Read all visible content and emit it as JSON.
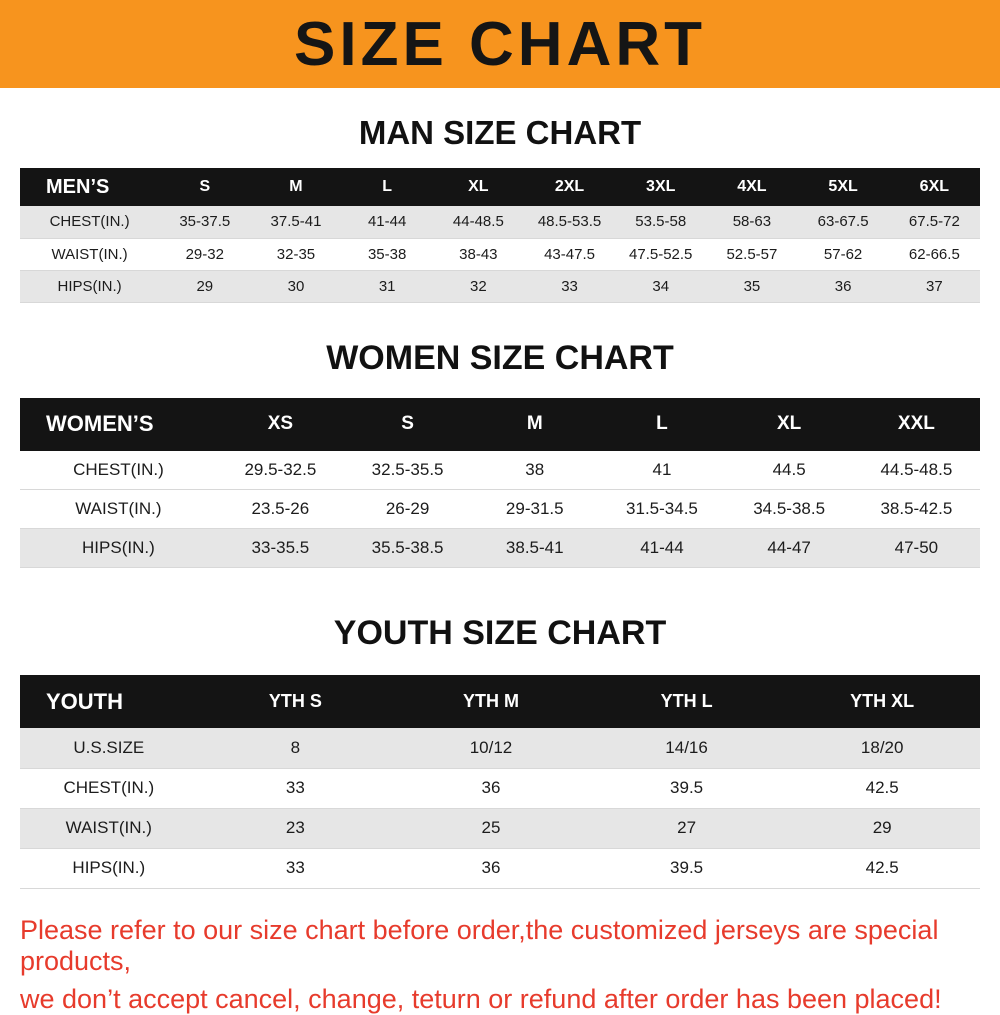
{
  "banner": {
    "title": "SIZE CHART",
    "bg_color": "#f7941e"
  },
  "chart_data": [
    {
      "type": "table",
      "title": "MAN SIZE CHART",
      "columns": [
        "MEN’S",
        "S",
        "M",
        "L",
        "XL",
        "2XL",
        "3XL",
        "4XL",
        "5XL",
        "6XL"
      ],
      "rows": [
        {
          "label": "CHEST(IN.)",
          "values": [
            "35-37.5",
            "37.5-41",
            "41-44",
            "44-48.5",
            "48.5-53.5",
            "53.5-58",
            "58-63",
            "63-67.5",
            "67.5-72"
          ]
        },
        {
          "label": "WAIST(IN.)",
          "values": [
            "29-32",
            "32-35",
            "35-38",
            "38-43",
            "43-47.5",
            "47.5-52.5",
            "52.5-57",
            "57-62",
            "62-66.5"
          ]
        },
        {
          "label": "HIPS(IN.)",
          "values": [
            "29",
            "30",
            "31",
            "32",
            "33",
            "34",
            "35",
            "36",
            "37"
          ]
        }
      ]
    },
    {
      "type": "table",
      "title": "WOMEN SIZE CHART",
      "columns": [
        "WOMEN’S",
        "XS",
        "S",
        "M",
        "L",
        "XL",
        "XXL"
      ],
      "rows": [
        {
          "label": "CHEST(IN.)",
          "values": [
            "29.5-32.5",
            "32.5-35.5",
            "38",
            "41",
            "44.5",
            "44.5-48.5"
          ]
        },
        {
          "label": "WAIST(IN.)",
          "values": [
            "23.5-26",
            "26-29",
            "29-31.5",
            "31.5-34.5",
            "34.5-38.5",
            "38.5-42.5"
          ]
        },
        {
          "label": "HIPS(IN.)",
          "values": [
            "33-35.5",
            "35.5-38.5",
            "38.5-41",
            "41-44",
            "44-47",
            "47-50"
          ]
        }
      ]
    },
    {
      "type": "table",
      "title": "YOUTH SIZE CHART",
      "columns": [
        "YOUTH",
        "YTH S",
        "YTH M",
        "YTH L",
        "YTH XL"
      ],
      "rows": [
        {
          "label": "U.S.SIZE",
          "values": [
            "8",
            "10/12",
            "14/16",
            "18/20"
          ]
        },
        {
          "label": "CHEST(IN.)",
          "values": [
            "33",
            "36",
            "39.5",
            "42.5"
          ]
        },
        {
          "label": "WAIST(IN.)",
          "values": [
            "23",
            "25",
            "27",
            "29"
          ]
        },
        {
          "label": "HIPS(IN.)",
          "values": [
            "33",
            "36",
            "39.5",
            "42.5"
          ]
        }
      ]
    }
  ],
  "footer": {
    "lines": [
      "Please refer to our size chart before order,the customized jerseys are special products,",
      "we don’t accept cancel, change, teturn or refund after order has been placed!"
    ],
    "text_color": "#e73b2c"
  }
}
